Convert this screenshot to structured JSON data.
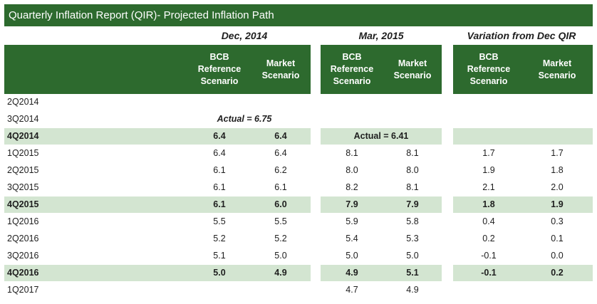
{
  "title": "Quarterly Inflation Report (QIR)- Projected Inflation Path",
  "groups": [
    "Dec, 2014",
    "Mar, 2015",
    "Variation from Dec QIR"
  ],
  "sub_headers": [
    "BCB Reference Scenario",
    "Market Scenario"
  ],
  "rows": [
    {
      "label": "2Q2014",
      "bold": false,
      "band": false,
      "values": [
        "",
        "",
        "",
        "",
        "",
        ""
      ]
    },
    {
      "label": "3Q2014",
      "bold": false,
      "band": false,
      "values": [
        "",
        "",
        "",
        "",
        "",
        ""
      ]
    },
    {
      "label": "4Q2014",
      "bold": true,
      "band": true,
      "values": [
        "6.4",
        "6.4",
        "",
        "",
        "",
        ""
      ]
    },
    {
      "label": "1Q2015",
      "bold": false,
      "band": false,
      "values": [
        "6.4",
        "6.4",
        "8.1",
        "8.1",
        "1.7",
        "1.7"
      ]
    },
    {
      "label": "2Q2015",
      "bold": false,
      "band": false,
      "values": [
        "6.1",
        "6.2",
        "8.0",
        "8.0",
        "1.9",
        "1.8"
      ]
    },
    {
      "label": "3Q2015",
      "bold": false,
      "band": false,
      "values": [
        "6.1",
        "6.1",
        "8.2",
        "8.1",
        "2.1",
        "2.0"
      ]
    },
    {
      "label": "4Q2015",
      "bold": true,
      "band": true,
      "values": [
        "6.1",
        "6.0",
        "7.9",
        "7.9",
        "1.8",
        "1.9"
      ]
    },
    {
      "label": "1Q2016",
      "bold": false,
      "band": false,
      "values": [
        "5.5",
        "5.5",
        "5.9",
        "5.8",
        "0.4",
        "0.3"
      ]
    },
    {
      "label": "2Q2016",
      "bold": false,
      "band": false,
      "values": [
        "5.2",
        "5.2",
        "5.4",
        "5.3",
        "0.2",
        "0.1"
      ]
    },
    {
      "label": "3Q2016",
      "bold": false,
      "band": false,
      "values": [
        "5.1",
        "5.0",
        "5.0",
        "5.0",
        "-0.1",
        "0.0"
      ]
    },
    {
      "label": "4Q2016",
      "bold": true,
      "band": true,
      "values": [
        "5.0",
        "4.9",
        "4.9",
        "5.1",
        "-0.1",
        "0.2"
      ]
    },
    {
      "label": "1Q2017",
      "bold": false,
      "band": false,
      "values": [
        "",
        "",
        "4.7",
        "4.9",
        "",
        ""
      ]
    }
  ],
  "notes": {
    "dec_actual": "Actual = 6.75",
    "mar_actual": "Actual = 6.41"
  },
  "colors": {
    "header_green": "#2d6a2e",
    "band_green": "#d3e5d1"
  }
}
